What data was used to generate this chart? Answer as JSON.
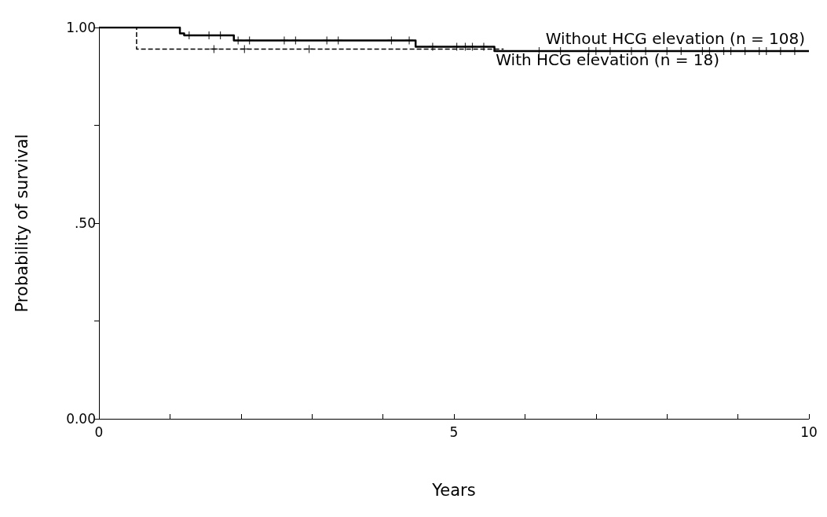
{
  "chart_data": {
    "type": "step",
    "xlabel": "Years",
    "ylabel": "Probability of survival",
    "xlim": [
      0,
      10
    ],
    "ylim": [
      0,
      1
    ],
    "xticks": [
      0,
      {
        "value": 1,
        "label": null
      },
      {
        "value": 2,
        "label": null
      },
      {
        "value": 3,
        "label": null
      },
      {
        "value": 4,
        "label": null
      },
      5,
      {
        "value": 6,
        "label": null
      },
      {
        "value": 7,
        "label": null
      },
      {
        "value": 8,
        "label": null
      },
      {
        "value": 9,
        "label": null
      },
      10
    ],
    "yticks": [
      {
        "value": 0,
        "label": "0.00"
      },
      {
        "value": 0.25,
        "label": null
      },
      {
        "value": 0.5,
        "label": ".50"
      },
      {
        "value": 0.75,
        "label": null
      },
      {
        "value": 1,
        "label": "1.00"
      }
    ],
    "grid": false,
    "legend": false,
    "series": [
      {
        "name": "Without HCG elevation (n = 108)",
        "color": "#000000",
        "line_style": "solid",
        "marker": "none",
        "x": [
          0,
          1.14,
          1.2,
          1.9,
          4.46,
          5.57,
          10
        ],
        "values": [
          1,
          0.985,
          0.98,
          0.967,
          0.951,
          0.94,
          0.94
        ]
      },
      {
        "name": "With HCG elevation (n = 18)",
        "color": "#000000",
        "line_style": "dashed",
        "marker": "none",
        "x": [
          0,
          0.53,
          5.7
        ],
        "values": [
          1,
          0.945,
          0.945
        ]
      },
      {
        "type": "scatter",
        "color": "#000000",
        "marker": "cross",
        "x": [
          1.27,
          1.55,
          1.71,
          1.96,
          2.12,
          2.61,
          2.77,
          3.21,
          3.37,
          4.12,
          4.37,
          4.7,
          5.04,
          5.16,
          5.26,
          5.42,
          6.2,
          6.5,
          6.9,
          7.0,
          7.2,
          7.5,
          7.7,
          8.0,
          8.2,
          8.5,
          8.6,
          8.8,
          8.9,
          9.1,
          9.3,
          9.4,
          9.6,
          9.8
        ],
        "values": [
          0.98,
          0.98,
          0.98,
          0.967,
          0.967,
          0.967,
          0.967,
          0.967,
          0.967,
          0.967,
          0.967,
          0.951,
          0.951,
          0.951,
          0.951,
          0.951,
          0.94,
          0.94,
          0.94,
          0.94,
          0.94,
          0.94,
          0.94,
          0.94,
          0.94,
          0.94,
          0.94,
          0.94,
          0.94,
          0.94,
          0.94,
          0.94,
          0.94,
          0.94
        ]
      },
      {
        "type": "scatter",
        "color": "#000000",
        "marker": "cross",
        "x": [
          1.62,
          2.05,
          2.96
        ],
        "values": [
          0.945,
          0.945,
          0.945
        ]
      }
    ]
  }
}
